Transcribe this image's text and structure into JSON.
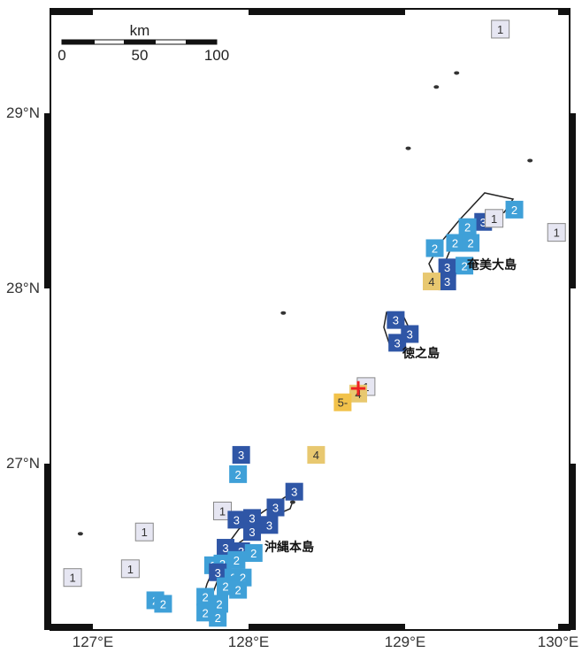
{
  "map": {
    "lon_range": [
      126.8,
      130.1
    ],
    "lat_range": [
      26.05,
      29.6
    ],
    "lat_ticks": [
      "29°N",
      "28°N",
      "27°N"
    ],
    "lon_ticks": [
      "127°E",
      "128°E",
      "129°E",
      "130°E"
    ],
    "scale_bar": {
      "unit": "km",
      "labels": [
        "0",
        "50",
        "100"
      ]
    },
    "places": [
      {
        "name": "奄美大島",
        "lon": 129.45,
        "lat": 28.12
      },
      {
        "name": "徳之島",
        "lon": 129.0,
        "lat": 27.63
      },
      {
        "name": "沖縄本島",
        "lon": 128.1,
        "lat": 26.5
      }
    ],
    "epicenter": {
      "lon": 128.7,
      "lat": 27.43,
      "symbol": "+"
    },
    "colors": {
      "1": "#e6e6f2",
      "2": "#3fa0d8",
      "3": "#2f56a6",
      "4": "#e8c870",
      "5-": "#f2c24a",
      "epicenter": "#ee2222"
    },
    "intensities": [
      {
        "v": "1",
        "lon": 129.61,
        "lat": 29.48
      },
      {
        "v": "1",
        "lon": 129.97,
        "lat": 28.32
      },
      {
        "v": "2",
        "lon": 129.7,
        "lat": 28.45
      },
      {
        "v": "3",
        "lon": 129.5,
        "lat": 28.38
      },
      {
        "v": "1",
        "lon": 129.57,
        "lat": 28.4
      },
      {
        "v": "2",
        "lon": 129.4,
        "lat": 28.35
      },
      {
        "v": "2",
        "lon": 129.32,
        "lat": 28.26
      },
      {
        "v": "2",
        "lon": 129.42,
        "lat": 28.26
      },
      {
        "v": "2",
        "lon": 129.19,
        "lat": 28.23
      },
      {
        "v": "3",
        "lon": 129.27,
        "lat": 28.12
      },
      {
        "v": "2",
        "lon": 129.38,
        "lat": 28.13
      },
      {
        "v": "3",
        "lon": 129.27,
        "lat": 28.04
      },
      {
        "v": "4",
        "lon": 129.17,
        "lat": 28.04
      },
      {
        "v": "3",
        "lon": 128.94,
        "lat": 27.82
      },
      {
        "v": "3",
        "lon": 129.03,
        "lat": 27.74
      },
      {
        "v": "3",
        "lon": 128.95,
        "lat": 27.69
      },
      {
        "v": "1",
        "lon": 128.75,
        "lat": 27.44
      },
      {
        "v": "4",
        "lon": 128.7,
        "lat": 27.4
      },
      {
        "v": "5-",
        "lon": 128.6,
        "lat": 27.35
      },
      {
        "v": "4",
        "lon": 128.43,
        "lat": 27.05
      },
      {
        "v": "3",
        "lon": 127.95,
        "lat": 27.05
      },
      {
        "v": "2",
        "lon": 127.93,
        "lat": 26.94
      },
      {
        "v": "3",
        "lon": 128.29,
        "lat": 26.84
      },
      {
        "v": "3",
        "lon": 128.17,
        "lat": 26.75
      },
      {
        "v": "1",
        "lon": 127.83,
        "lat": 26.73
      },
      {
        "v": "3",
        "lon": 127.92,
        "lat": 26.68
      },
      {
        "v": "3",
        "lon": 128.02,
        "lat": 26.69
      },
      {
        "v": "3",
        "lon": 128.13,
        "lat": 26.65
      },
      {
        "v": "3",
        "lon": 128.02,
        "lat": 26.61
      },
      {
        "v": "1",
        "lon": 127.33,
        "lat": 26.61
      },
      {
        "v": "3",
        "lon": 127.85,
        "lat": 26.52
      },
      {
        "v": "3",
        "lon": 127.95,
        "lat": 26.5
      },
      {
        "v": "2",
        "lon": 128.03,
        "lat": 26.49
      },
      {
        "v": "1",
        "lon": 127.24,
        "lat": 26.4
      },
      {
        "v": "2",
        "lon": 127.77,
        "lat": 26.42
      },
      {
        "v": "2",
        "lon": 127.83,
        "lat": 26.43
      },
      {
        "v": "2",
        "lon": 127.92,
        "lat": 26.45
      },
      {
        "v": "3",
        "lon": 127.8,
        "lat": 26.38
      },
      {
        "v": "2",
        "lon": 127.9,
        "lat": 26.35
      },
      {
        "v": "2",
        "lon": 127.96,
        "lat": 26.35
      },
      {
        "v": "1",
        "lon": 126.87,
        "lat": 26.35
      },
      {
        "v": "2",
        "lon": 127.85,
        "lat": 26.3
      },
      {
        "v": "2",
        "lon": 127.93,
        "lat": 26.28
      },
      {
        "v": "2",
        "lon": 127.4,
        "lat": 26.22
      },
      {
        "v": "2",
        "lon": 127.45,
        "lat": 26.2
      },
      {
        "v": "2",
        "lon": 127.72,
        "lat": 26.24
      },
      {
        "v": "2",
        "lon": 127.81,
        "lat": 26.2
      },
      {
        "v": "2",
        "lon": 127.72,
        "lat": 26.15
      },
      {
        "v": "2",
        "lon": 127.8,
        "lat": 26.12
      }
    ],
    "coast_blobs": [
      {
        "lon": 129.2,
        "lat": 29.15
      },
      {
        "lon": 129.33,
        "lat": 29.23
      },
      {
        "lon": 129.02,
        "lat": 28.8
      },
      {
        "lon": 128.22,
        "lat": 27.86
      },
      {
        "lon": 129.8,
        "lat": 28.73
      },
      {
        "lon": 126.92,
        "lat": 26.6
      },
      {
        "lon": 127.47,
        "lat": 26.21
      },
      {
        "lon": 128.28,
        "lat": 26.78
      }
    ]
  }
}
